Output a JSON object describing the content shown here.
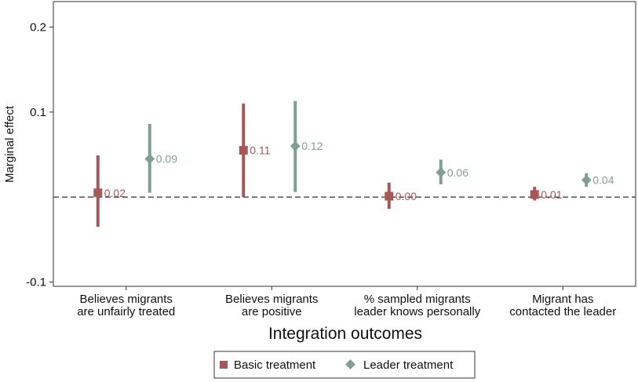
{
  "chart_data": {
    "type": "scatter",
    "title": "",
    "xlabel": "Integration outcomes",
    "ylabel": "Marginal effect",
    "ylim": [
      -0.105,
      0.23
    ],
    "yticks": [
      -0.1,
      0.1,
      0.2
    ],
    "ytick_labels": [
      "-0.1",
      "0.1",
      "0.2"
    ],
    "reference_line": 0.0,
    "grid": false,
    "legend_position": "bottom",
    "categories": [
      [
        "Believes migrants",
        "are unfairly treated"
      ],
      [
        "Believes migrants",
        "are positive"
      ],
      [
        "% sampled migrants",
        "leader knows personally"
      ],
      [
        "Migrant has",
        "contacted the leader"
      ]
    ],
    "series": [
      {
        "name": "Basic treatment",
        "marker": "square",
        "color": "#a65858",
        "values": [
          0.005,
          0.055,
          0.001,
          0.003
        ],
        "ci_low": [
          -0.035,
          0.0,
          -0.014,
          -0.004
        ],
        "ci_high": [
          0.049,
          0.11,
          0.017,
          0.012
        ],
        "labels": [
          "0.02",
          "0.11",
          "0.00",
          "0.01"
        ]
      },
      {
        "name": "Leader treatment",
        "marker": "diamond",
        "color": "#7f9e94",
        "values": [
          0.045,
          0.06,
          0.029,
          0.02
        ],
        "ci_low": [
          0.005,
          0.006,
          0.015,
          0.012
        ],
        "ci_high": [
          0.086,
          0.113,
          0.044,
          0.028
        ],
        "labels": [
          "0.09",
          "0.12",
          "0.06",
          "0.04"
        ]
      }
    ]
  }
}
